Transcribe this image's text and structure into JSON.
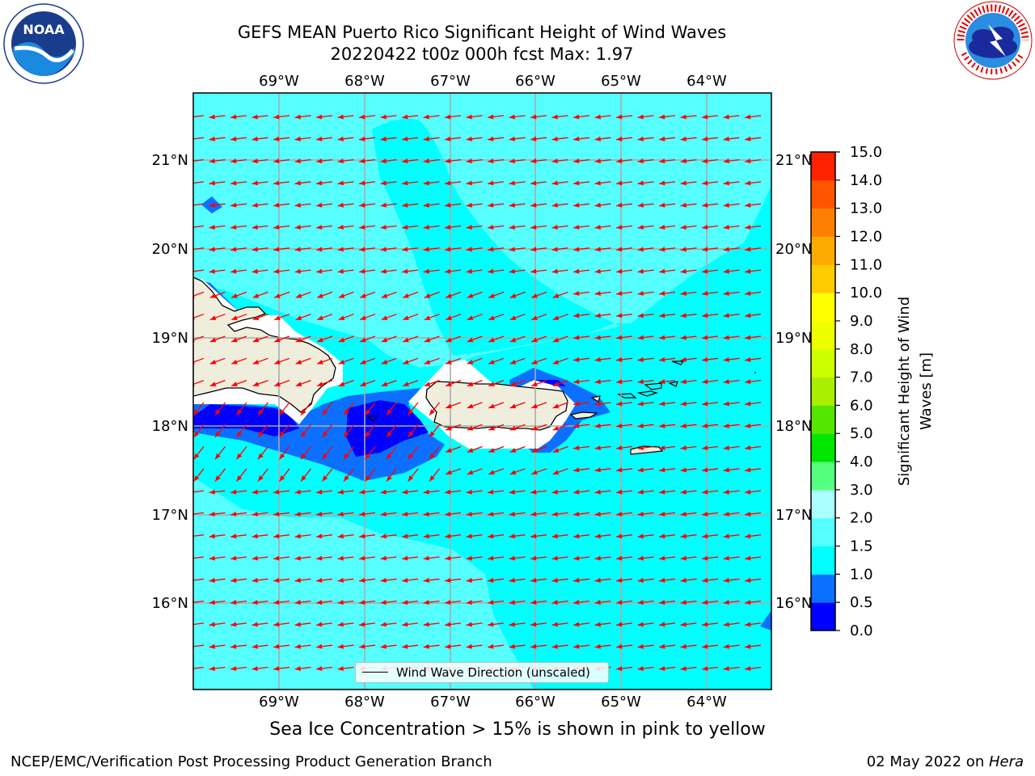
{
  "title": {
    "line1": "GEFS MEAN Puerto Rico Significant Height of Wind Waves",
    "line2": "20220422 t00z 000h fcst   Max: 1.97"
  },
  "map": {
    "lon_range": [
      -70.0,
      -63.25
    ],
    "lat_range": [
      15.0,
      21.75
    ],
    "lon_ticks": [
      {
        "value": -69,
        "label": "69°W"
      },
      {
        "value": -68,
        "label": "68°W"
      },
      {
        "value": -67,
        "label": "67°W"
      },
      {
        "value": -66,
        "label": "66°W"
      },
      {
        "value": -65,
        "label": "65°W"
      },
      {
        "value": -64,
        "label": "64°W"
      }
    ],
    "lat_ticks": [
      {
        "value": 21,
        "label": "21°N"
      },
      {
        "value": 20,
        "label": "20°N"
      },
      {
        "value": 19,
        "label": "19°N"
      },
      {
        "value": 18,
        "label": "18°N"
      },
      {
        "value": 17,
        "label": "17°N"
      },
      {
        "value": 16,
        "label": "16°N"
      }
    ],
    "gridlines": true,
    "land_color": "#efeedd",
    "arrow_color": "#ff0000",
    "background_field_color": "#00ffff"
  },
  "legend": {
    "label": "Wind Wave Direction (unscaled)",
    "placement": "lower-center"
  },
  "colorbar": {
    "label_line1": "Significant Height of Wind",
    "label_line2": "Waves [m]",
    "levels": [
      0.0,
      0.5,
      1.0,
      1.5,
      2.0,
      3.0,
      4.0,
      5.0,
      6.0,
      7.0,
      8.0,
      9.0,
      10.0,
      11.0,
      12.0,
      13.0,
      14.0,
      15.0
    ],
    "tick_labels": [
      "0.0",
      "0.5",
      "1.0",
      "1.5",
      "2.0",
      "3.0",
      "4.0",
      "5.0",
      "6.0",
      "7.0",
      "8.0",
      "9.0",
      "10.0",
      "11.0",
      "12.0",
      "13.0",
      "14.0",
      "15.0"
    ],
    "colors": [
      "#0000ff",
      "#0b70ff",
      "#00ffff",
      "#55ffff",
      "#aaffff",
      "#55ff7f",
      "#00e600",
      "#55e600",
      "#aaee00",
      "#ccff00",
      "#eeff00",
      "#ffff00",
      "#ffcc00",
      "#ffaa00",
      "#ff8000",
      "#ff5500",
      "#ff2200"
    ]
  },
  "subtitle": "Sea Ice Concentration > 15% is shown in pink to yellow",
  "footer": {
    "left": "NCEP/EMC/Verification Post Processing Product Generation Branch",
    "right_date": "02 May 2022 on ",
    "right_host": "Hera"
  }
}
